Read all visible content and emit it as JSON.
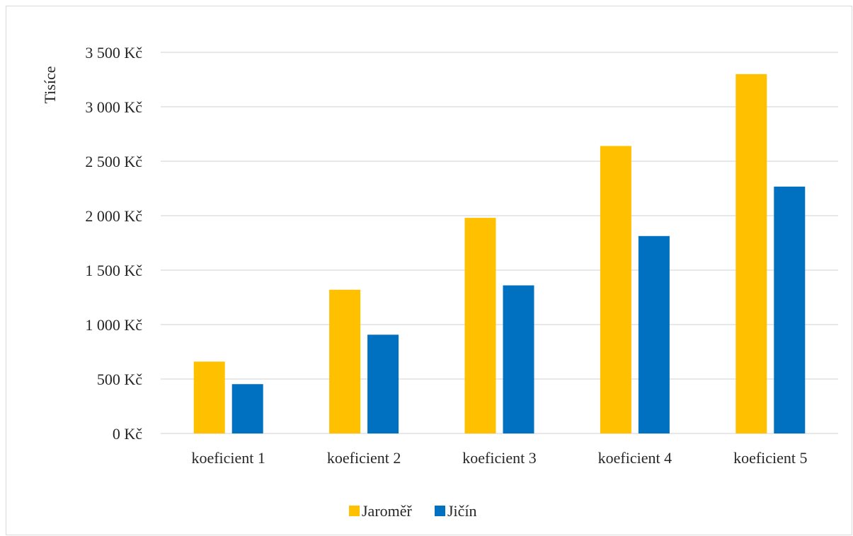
{
  "chart_data": {
    "type": "bar",
    "title": "",
    "xlabel": "",
    "ylabel": "Tisíce",
    "ylim": [
      0,
      3500
    ],
    "yticks": [
      0,
      500,
      1000,
      1500,
      2000,
      2500,
      3000,
      3500
    ],
    "ytick_labels": [
      "0 Kč",
      "500 Kč",
      "1 000 Kč",
      "1 500 Kč",
      "2 000 Kč",
      "2 500 Kč",
      "3 000 Kč",
      "3 500 Kč"
    ],
    "categories": [
      "koeficient 1",
      "koeficient 2",
      "koeficient 3",
      "koeficient 4",
      "koeficient 5"
    ],
    "series": [
      {
        "name": "Jaroměř",
        "color": "#FFC000",
        "values": [
          660,
          1320,
          1980,
          2640,
          3300
        ]
      },
      {
        "name": "Jičín",
        "color": "#0070C0",
        "values": [
          453,
          907,
          1360,
          1813,
          2267
        ]
      }
    ],
    "grid": true,
    "legend_position": "bottom"
  }
}
